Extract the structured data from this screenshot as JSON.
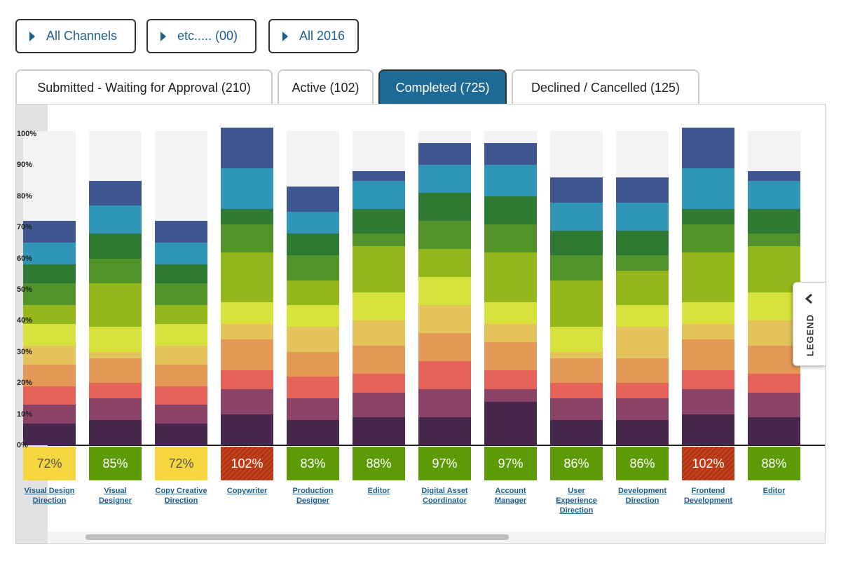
{
  "filters": [
    "All Channels",
    "etc..... (00)",
    "All 2016"
  ],
  "tabs": [
    "Submitted - Waiting for Approval (210)",
    "Active (102)",
    "Completed (725)",
    "Declined / Cancelled (125)"
  ],
  "active_tab": 2,
  "legend_toggle": "LEGEND",
  "chart_data": {
    "type": "bar",
    "stacked": true,
    "categories": [
      "Visual Design Direction",
      "Visual Designer",
      "Copy Creative Direction",
      "Copywriter",
      "Production Designer",
      "Editor",
      "Digital Asset Coordinator",
      "Account Manager",
      "User Experience Direction",
      "Development Direction",
      "Frontend Development",
      "Editor"
    ],
    "ylim": [
      0,
      100
    ],
    "yticks": [
      {
        "value": 0,
        "label": "0%"
      },
      {
        "value": 10,
        "label": "10%"
      },
      {
        "value": 20,
        "label": "20%"
      },
      {
        "value": 30,
        "label": "30%"
      },
      {
        "value": 40,
        "label": "40%"
      },
      {
        "value": 50,
        "label": "50%"
      },
      {
        "value": 60,
        "label": "60%"
      },
      {
        "value": 70,
        "label": "70%"
      },
      {
        "value": 80,
        "label": "80%"
      },
      {
        "value": 90,
        "label": "90%"
      },
      {
        "value": 100,
        "label": "100%"
      }
    ],
    "series": [
      {
        "color": "#47284d",
        "values": [
          7,
          8,
          7,
          10,
          8,
          9,
          9,
          14,
          8,
          8,
          10,
          9
        ]
      },
      {
        "color": "#8a4266",
        "values": [
          6,
          7,
          6,
          8,
          7,
          8,
          9,
          4,
          7,
          7,
          8,
          8
        ]
      },
      {
        "color": "#e6635a",
        "values": [
          6,
          5,
          6,
          6,
          7,
          6,
          9,
          6,
          5,
          5,
          6,
          6
        ]
      },
      {
        "color": "#e49a56",
        "values": [
          7,
          8,
          7,
          10,
          8,
          9,
          9,
          9,
          8,
          8,
          10,
          9
        ]
      },
      {
        "color": "#e4c25c",
        "values": [
          6,
          2,
          6,
          5,
          8,
          8,
          9,
          6,
          2,
          10,
          5,
          8
        ]
      },
      {
        "color": "#d8e23c",
        "values": [
          7,
          8,
          7,
          7,
          7,
          9,
          9,
          7,
          8,
          7,
          7,
          9
        ]
      },
      {
        "color": "#94b71c",
        "values": [
          6,
          14,
          6,
          16,
          8,
          15,
          9,
          16,
          15,
          11,
          16,
          15
        ]
      },
      {
        "color": "#52922a",
        "values": [
          7,
          8,
          7,
          9,
          8,
          4,
          9,
          9,
          8,
          5,
          9,
          4
        ]
      },
      {
        "color": "#2e7a33",
        "values": [
          6,
          8,
          6,
          5,
          7,
          8,
          9,
          9,
          8,
          8,
          5,
          8
        ]
      },
      {
        "color": "#2f96b8",
        "values": [
          7,
          9,
          7,
          13,
          7,
          9,
          9,
          10,
          9,
          9,
          13,
          9
        ]
      },
      {
        "color": "#3f5690",
        "values": [
          7,
          8,
          7,
          13,
          8,
          3,
          7,
          7,
          8,
          8,
          13,
          3
        ]
      }
    ],
    "totals": {
      "values": [
        72,
        85,
        72,
        102,
        83,
        88,
        97,
        97,
        86,
        86,
        102,
        88
      ],
      "value_labels": [
        "72%",
        "85%",
        "72%",
        "102%",
        "83%",
        "88%",
        "97%",
        "97%",
        "86%",
        "86%",
        "102%",
        "88%"
      ],
      "colors": [
        "#f6d63e",
        "#5c9a06",
        "#f6d63e",
        "#c8401a",
        "#5c9a06",
        "#5c9a06",
        "#5c9a06",
        "#5c9a06",
        "#5c9a06",
        "#5c9a06",
        "#c8401a",
        "#5c9a06"
      ]
    }
  }
}
